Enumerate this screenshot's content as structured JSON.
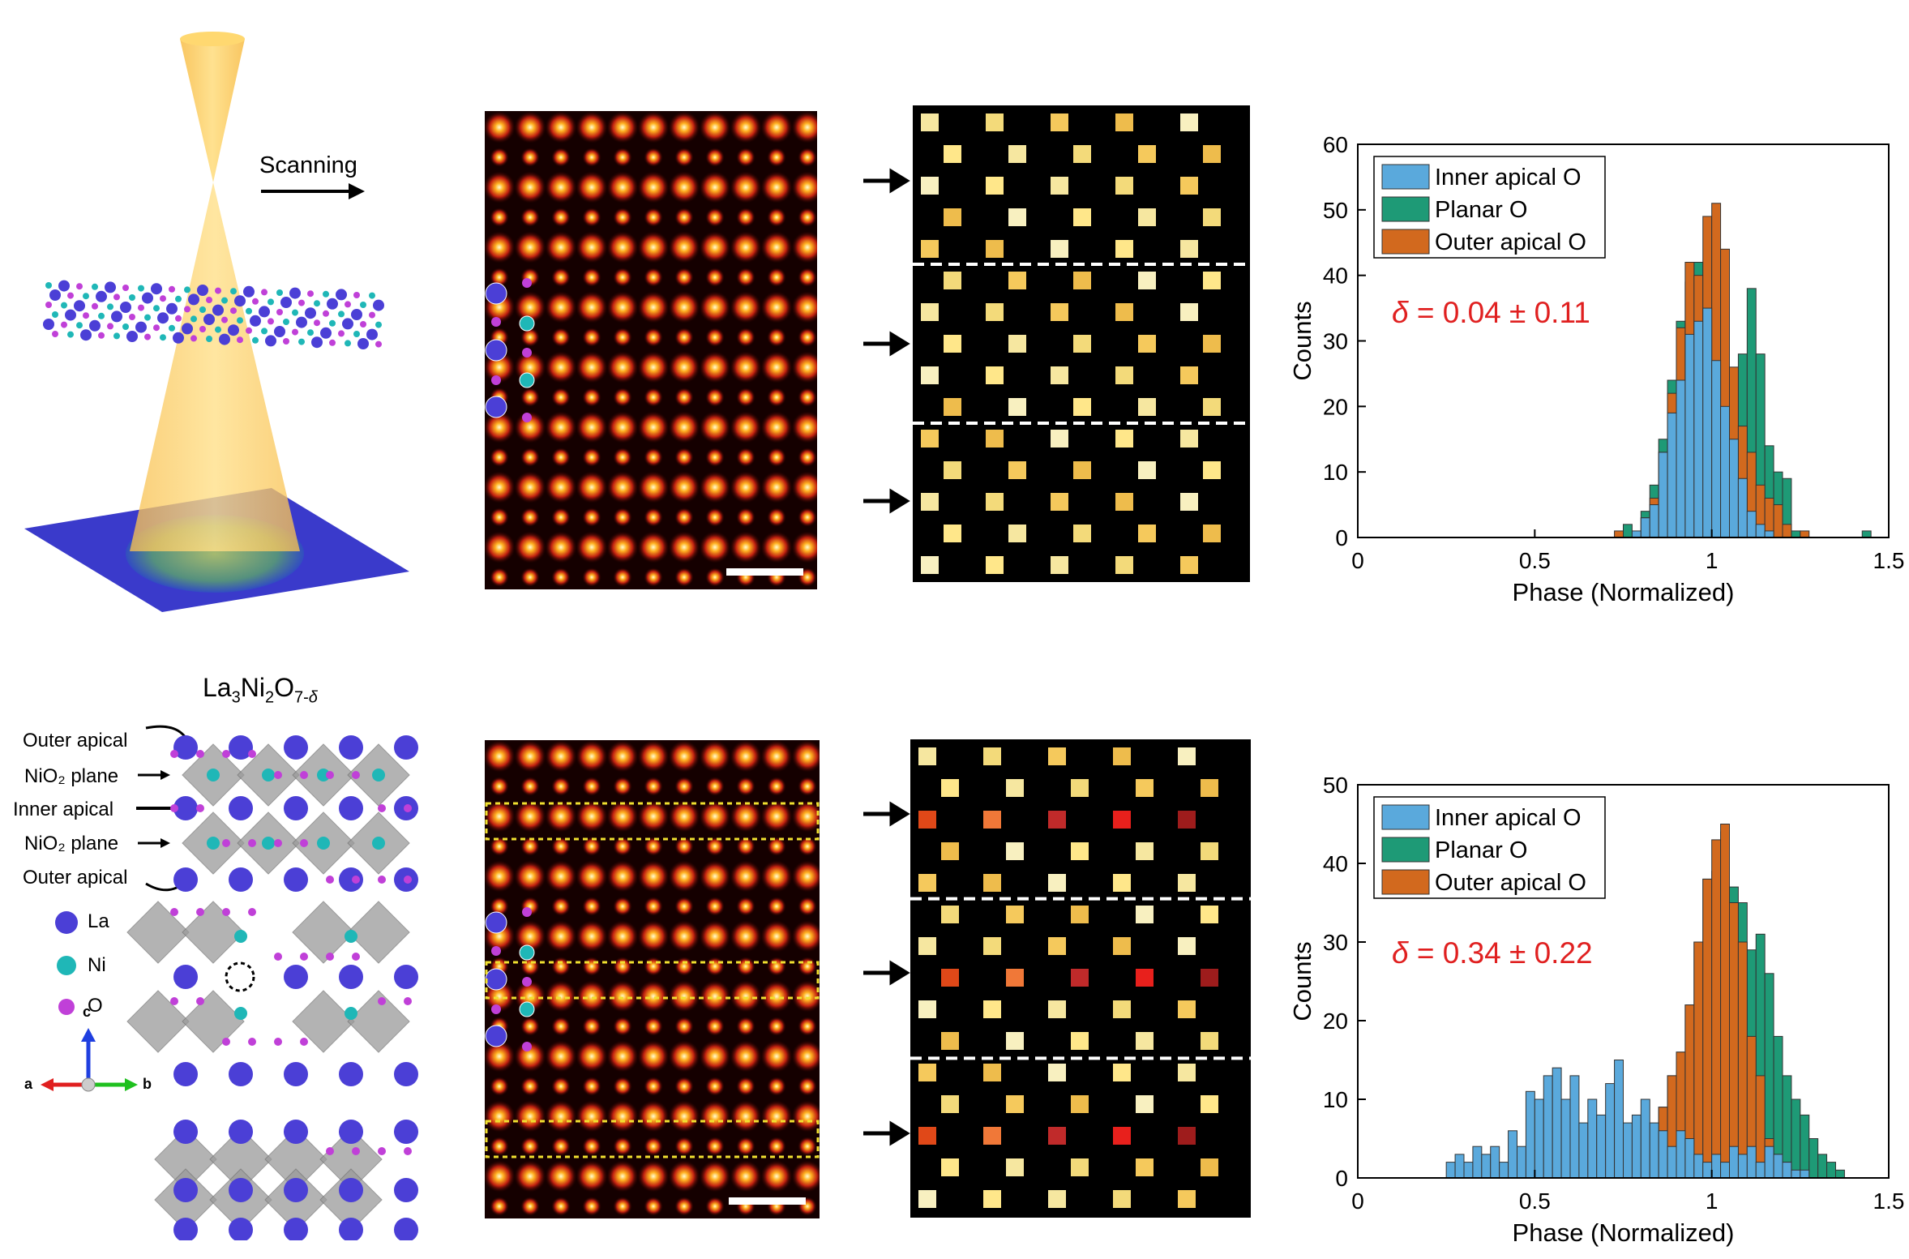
{
  "schematic": {
    "scanning_label": "Scanning",
    "formula_main": "La",
    "formula_sub1": "3",
    "formula_ni": "Ni",
    "formula_sub2": "2",
    "formula_o": "O",
    "formula_sub3": "7-",
    "formula_delta": "δ",
    "structure_labels": [
      "Outer apical",
      "NiO₂ plane",
      "Inner apical",
      "NiO₂ plane",
      "Outer apical"
    ],
    "legend": [
      {
        "label": "La",
        "color": "#4b3fd6"
      },
      {
        "label": "Ni",
        "color": "#1fb7b7"
      },
      {
        "label": "O",
        "color": "#c040d8"
      }
    ],
    "axes_labels": {
      "c": "c",
      "a": "a",
      "b": "b"
    }
  },
  "colors": {
    "text_red": "#e02020",
    "inner_apical": "#5aa9dc",
    "planar": "#1e9a76",
    "outer_apical": "#d2691e"
  },
  "chart_data": [
    {
      "type": "bar",
      "title": "",
      "xlabel": "Phase (Normalized)",
      "ylabel": "Counts",
      "xlim": [
        0,
        1.5
      ],
      "ylim": [
        0,
        60
      ],
      "xticks": [
        "0",
        "0.5",
        "1",
        "1.5"
      ],
      "yticks": [
        "0",
        "10",
        "20",
        "30",
        "40",
        "50",
        "60"
      ],
      "legend": [
        "Inner apical O",
        "Planar O",
        "Outer apical O"
      ],
      "legend_position": "top-left",
      "annotation_symbol": "δ",
      "annotation_value": " = 0.04 ± 0.11",
      "bin_width": 0.025,
      "series": [
        {
          "name": "Planar O",
          "bins": [
            [
              1.425,
              1
            ]
          ]
        },
        {
          "name": "Planar O",
          "bins": [
            [
              0.75,
              2
            ],
            [
              0.775,
              0
            ],
            [
              0.8,
              4
            ],
            [
              0.825,
              8
            ],
            [
              0.85,
              15
            ],
            [
              0.875,
              24
            ],
            [
              0.9,
              33
            ],
            [
              0.925,
              39
            ],
            [
              0.95,
              42
            ],
            [
              0.975,
              40
            ],
            [
              1.0,
              36
            ],
            [
              1.025,
              30
            ],
            [
              1.05,
              22
            ],
            [
              1.075,
              28
            ],
            [
              1.1,
              38
            ],
            [
              1.125,
              28
            ],
            [
              1.15,
              14
            ],
            [
              1.175,
              10
            ],
            [
              1.2,
              9
            ],
            [
              1.225,
              1
            ]
          ]
        },
        {
          "name": "Outer apical O",
          "bins": [
            [
              0.725,
              1
            ],
            [
              0.75,
              0
            ],
            [
              0.8,
              3
            ],
            [
              0.825,
              6
            ],
            [
              0.85,
              13
            ],
            [
              0.875,
              22
            ],
            [
              0.9,
              32
            ],
            [
              0.925,
              42
            ],
            [
              0.95,
              40
            ],
            [
              0.975,
              49
            ],
            [
              1.0,
              51
            ],
            [
              1.025,
              44
            ],
            [
              1.05,
              26
            ],
            [
              1.075,
              17
            ],
            [
              1.1,
              13
            ],
            [
              1.125,
              8
            ],
            [
              1.15,
              6
            ],
            [
              1.175,
              5
            ],
            [
              1.2,
              2
            ],
            [
              1.25,
              1
            ]
          ]
        },
        {
          "name": "Inner apical O",
          "bins": [
            [
              0.775,
              1
            ],
            [
              0.8,
              3
            ],
            [
              0.825,
              5
            ],
            [
              0.85,
              13
            ],
            [
              0.875,
              19
            ],
            [
              0.9,
              24
            ],
            [
              0.925,
              31
            ],
            [
              0.95,
              33
            ],
            [
              0.975,
              35
            ],
            [
              1.0,
              27
            ],
            [
              1.025,
              20
            ],
            [
              1.05,
              15
            ],
            [
              1.075,
              9
            ],
            [
              1.1,
              4
            ],
            [
              1.125,
              2
            ],
            [
              1.15,
              1
            ]
          ]
        }
      ]
    },
    {
      "type": "bar",
      "title": "",
      "xlabel": "Phase (Normalized)",
      "ylabel": "Counts",
      "xlim": [
        0,
        1.5
      ],
      "ylim": [
        0,
        50
      ],
      "xticks": [
        "0",
        "0.5",
        "1",
        "1.5"
      ],
      "yticks": [
        "0",
        "10",
        "20",
        "30",
        "40",
        "50"
      ],
      "legend": [
        "Inner apical O",
        "Planar O",
        "Outer apical O"
      ],
      "legend_position": "top-left",
      "annotation_symbol": "δ",
      "annotation_value": " = 0.34 ± 0.22",
      "bin_width": 0.025,
      "series": [
        {
          "name": "Planar O",
          "bins": [
            [
              0.8,
              3
            ],
            [
              0.825,
              5
            ],
            [
              0.85,
              9
            ],
            [
              0.875,
              13
            ],
            [
              0.9,
              16
            ],
            [
              0.925,
              22
            ],
            [
              0.95,
              30
            ],
            [
              0.975,
              38
            ],
            [
              1.0,
              39
            ],
            [
              1.025,
              44
            ],
            [
              1.05,
              37
            ],
            [
              1.075,
              35
            ],
            [
              1.1,
              29
            ],
            [
              1.125,
              31
            ],
            [
              1.15,
              26
            ],
            [
              1.175,
              18
            ],
            [
              1.2,
              13
            ],
            [
              1.225,
              10
            ],
            [
              1.25,
              8
            ],
            [
              1.275,
              5
            ],
            [
              1.3,
              3
            ],
            [
              1.325,
              2
            ],
            [
              1.35,
              1
            ]
          ]
        },
        {
          "name": "Outer apical O",
          "bins": [
            [
              0.825,
              5
            ],
            [
              0.85,
              9
            ],
            [
              0.875,
              13
            ],
            [
              0.9,
              16
            ],
            [
              0.925,
              22
            ],
            [
              0.95,
              30
            ],
            [
              0.975,
              38
            ],
            [
              1.0,
              43
            ],
            [
              1.025,
              45
            ],
            [
              1.05,
              35
            ],
            [
              1.075,
              30
            ],
            [
              1.1,
              18
            ],
            [
              1.125,
              13
            ],
            [
              1.15,
              5
            ],
            [
              1.175,
              3
            ],
            [
              1.2,
              2
            ]
          ]
        },
        {
          "name": "Inner apical O",
          "bins": [
            [
              0.25,
              2
            ],
            [
              0.275,
              3
            ],
            [
              0.3,
              2
            ],
            [
              0.325,
              4
            ],
            [
              0.35,
              3
            ],
            [
              0.375,
              4
            ],
            [
              0.4,
              2
            ],
            [
              0.425,
              6
            ],
            [
              0.45,
              4
            ],
            [
              0.475,
              11
            ],
            [
              0.5,
              10
            ],
            [
              0.525,
              13
            ],
            [
              0.55,
              14
            ],
            [
              0.575,
              10
            ],
            [
              0.6,
              13
            ],
            [
              0.625,
              7
            ],
            [
              0.65,
              10
            ],
            [
              0.675,
              8
            ],
            [
              0.7,
              12
            ],
            [
              0.725,
              15
            ],
            [
              0.75,
              7
            ],
            [
              0.775,
              8
            ],
            [
              0.8,
              10
            ],
            [
              0.825,
              7
            ],
            [
              0.85,
              6
            ],
            [
              0.875,
              4
            ],
            [
              0.9,
              6
            ],
            [
              0.925,
              5
            ],
            [
              0.95,
              3
            ],
            [
              0.975,
              2
            ],
            [
              1.0,
              3
            ],
            [
              1.025,
              2
            ],
            [
              1.05,
              4
            ],
            [
              1.075,
              3
            ],
            [
              1.1,
              4
            ],
            [
              1.125,
              2
            ],
            [
              1.15,
              4
            ],
            [
              1.175,
              3
            ],
            [
              1.2,
              2
            ],
            [
              1.225,
              1
            ],
            [
              1.25,
              1
            ]
          ]
        }
      ]
    }
  ]
}
